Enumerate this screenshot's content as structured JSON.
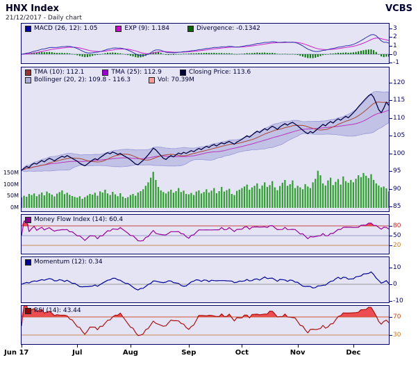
{
  "header": {
    "title": "HNX Index",
    "subtitle": "21/12/2017 - Daily chart",
    "brand": "VCBS"
  },
  "panels": {
    "macd": {
      "legend": [
        {
          "label": "MACD (26, 12): 1.05",
          "color": "#0000aa"
        },
        {
          "label": "EXP (9): 1.184",
          "color": "#cc00cc"
        },
        {
          "label": "Divergence: -0.1342",
          "color": "#006600"
        }
      ]
    },
    "price": {
      "legend": [
        {
          "label": "TMA (10): 112.1",
          "color": "#993333"
        },
        {
          "label": "TMA (25): 112.9",
          "color": "#9900cc"
        },
        {
          "label": "Closing Price: 113.6",
          "color": "#000033"
        },
        {
          "label": "Bollinger (20, 2): 109.8 - 116.3",
          "color": "#aaaadd"
        },
        {
          "label": "Vol: 70.39M",
          "color": "#ff9999"
        }
      ]
    },
    "mfi": {
      "legend": [
        {
          "label": "Money Flow Index (14): 60.4",
          "color": "#880088"
        }
      ]
    },
    "momentum": {
      "legend": [
        {
          "label": "Momentum (12): 0.34",
          "color": "#000099"
        }
      ]
    },
    "rsi": {
      "legend": [
        {
          "label": "RSI (14): 43.44",
          "color": "#990000"
        }
      ]
    }
  },
  "chart_data": {
    "type": "line",
    "title": "HNX Index",
    "subtitle": "21/12/2017 - Daily chart",
    "panels_order": [
      "MACD",
      "Price + Bollinger + Volume",
      "Money Flow Index",
      "Momentum",
      "RSI"
    ],
    "x_axis": {
      "label": "date",
      "months": [
        {
          "label": "Jun 17",
          "index": 0
        },
        {
          "label": "Jul",
          "index": 22
        },
        {
          "label": "Aug",
          "index": 43
        },
        {
          "label": "Sep",
          "index": 66
        },
        {
          "label": "Oct",
          "index": 87
        },
        {
          "label": "Nov",
          "index": 109
        },
        {
          "label": "Dec",
          "index": 131
        }
      ]
    },
    "series_last_values": {
      "macd": 1.05,
      "macd_signal": 1.184,
      "macd_divergence": -0.1342,
      "tma10": 112.1,
      "tma25": 112.9,
      "close": 113.6,
      "bollinger_lower": 109.8,
      "bollinger_upper": 116.3,
      "volume": "70.39M",
      "mfi14": 60.4,
      "momentum12": 0.34,
      "rsi14": 43.44
    },
    "close": [
      95.2,
      95.8,
      96.3,
      96.0,
      96.8,
      97.2,
      97.0,
      97.5,
      98.0,
      97.6,
      98.2,
      98.6,
      98.3,
      97.9,
      98.4,
      98.8,
      99.2,
      98.9,
      99.4,
      99.0,
      98.6,
      98.2,
      97.8,
      97.2,
      96.8,
      96.5,
      97.0,
      97.6,
      98.1,
      98.5,
      98.2,
      98.8,
      99.3,
      99.8,
      100.2,
      99.9,
      100.4,
      100.1,
      99.7,
      100.0,
      99.5,
      99.1,
      98.7,
      98.2,
      97.6,
      97.0,
      96.8,
      97.4,
      98.0,
      98.8,
      99.6,
      100.5,
      101.5,
      101.0,
      100.2,
      99.4,
      98.6,
      98.3,
      98.9,
      99.4,
      99.0,
      99.6,
      100.1,
      99.8,
      100.3,
      100.0,
      100.4,
      100.8,
      100.5,
      101.0,
      101.4,
      101.1,
      101.6,
      102.0,
      101.7,
      102.2,
      102.5,
      102.1,
      102.6,
      103.0,
      102.7,
      103.1,
      103.4,
      103.0,
      102.6,
      103.2,
      103.6,
      104.0,
      104.5,
      105.0,
      104.6,
      105.2,
      105.8,
      106.3,
      105.9,
      106.5,
      107.0,
      106.6,
      107.2,
      107.7,
      107.3,
      106.8,
      107.5,
      108.0,
      108.4,
      108.0,
      108.5,
      108.8,
      108.3,
      107.8,
      107.2,
      106.6,
      106.0,
      105.6,
      106.2,
      105.8,
      106.4,
      107.0,
      107.6,
      108.2,
      107.8,
      108.5,
      109.0,
      108.6,
      109.3,
      109.8,
      109.4,
      110.0,
      110.5,
      110.1,
      110.8,
      111.5,
      112.3,
      113.2,
      114.0,
      114.8,
      115.6,
      116.3,
      116.8,
      115.9,
      114.2,
      112.4,
      111.5,
      112.8,
      114.5,
      113.6
    ],
    "volume_m": [
      45,
      52,
      48,
      60,
      55,
      62,
      50,
      58,
      66,
      54,
      70,
      63,
      57,
      49,
      61,
      68,
      75,
      59,
      65,
      56,
      51,
      47,
      44,
      50,
      39,
      46,
      53,
      60,
      57,
      65,
      52,
      71,
      66,
      78,
      62,
      55,
      69,
      58,
      50,
      63,
      48,
      42,
      46,
      55,
      60,
      52,
      66,
      72,
      80,
      95,
      110,
      130,
      155,
      120,
      90,
      75,
      68,
      62,
      70,
      78,
      65,
      72,
      85,
      68,
      74,
      60,
      58,
      64,
      55,
      70,
      75,
      62,
      68,
      80,
      66,
      74,
      85,
      63,
      72,
      90,
      70,
      76,
      82,
      60,
      55,
      73,
      78,
      85,
      92,
      100,
      78,
      88,
      95,
      105,
      82,
      96,
      110,
      90,
      98,
      115,
      88,
      76,
      94,
      108,
      120,
      95,
      102,
      118,
      85,
      95,
      88,
      80,
      102,
      92,
      85,
      110,
      125,
      160,
      140,
      105,
      96,
      118,
      130,
      98,
      112,
      124,
      100,
      135,
      115,
      108,
      120,
      110,
      125,
      140,
      132,
      150,
      138,
      128,
      145,
      120,
      105,
      96,
      88,
      92,
      84,
      70.39
    ],
    "axes": {
      "macd": {
        "ticks": [
          {
            "text": "3",
            "v": 3
          },
          {
            "text": "2",
            "v": 2
          },
          {
            "text": "1",
            "v": 1
          },
          {
            "text": "0",
            "v": 0
          },
          {
            "text": "-1",
            "v": -1
          }
        ],
        "ref_lines": [
          {
            "v": 0,
            "color": "#9a9ac8"
          }
        ],
        "range": [
          -1.2,
          3.6
        ]
      },
      "price": {
        "ticks": [
          {
            "text": "120",
            "v": 120
          },
          {
            "text": "115",
            "v": 115
          },
          {
            "text": "110",
            "v": 110
          },
          {
            "text": "105",
            "v": 105
          },
          {
            "text": "100",
            "v": 100
          },
          {
            "text": "95",
            "v": 95
          },
          {
            "text": "90",
            "v": 90
          },
          {
            "text": "85",
            "v": 85
          }
        ],
        "range": [
          84,
          120
        ]
      },
      "volume": {
        "ticks": [
          {
            "text": "150M",
            "v": 150
          },
          {
            "text": "100M",
            "v": 100
          },
          {
            "text": "50M",
            "v": 50
          },
          {
            "text": "0M",
            "v": 0
          }
        ]
      },
      "mfi": {
        "ticks": [
          {
            "text": "80",
            "v": 80,
            "color": "#cc2222"
          },
          {
            "text": "50",
            "v": 50
          },
          {
            "text": "20",
            "v": 20,
            "color": "#cc7722"
          }
        ],
        "ref_lines": [
          {
            "v": 80,
            "color": "#cc4444"
          },
          {
            "v": 50,
            "color": "#9a9ac8"
          },
          {
            "v": 20,
            "color": "#cc8855"
          }
        ],
        "overbought": 80
      },
      "momentum": {
        "ticks": [
          {
            "text": "10",
            "v": 10
          },
          {
            "text": "0",
            "v": 0
          },
          {
            "text": "-10",
            "v": -10
          }
        ],
        "ref_lines": [
          {
            "v": 0,
            "color": "#999999"
          }
        ]
      },
      "rsi": {
        "ticks": [
          {
            "text": "70",
            "v": 70,
            "color": "#cc4411"
          },
          {
            "text": "30",
            "v": 30,
            "color": "#cc7722"
          }
        ],
        "ref_lines": [
          {
            "v": 70,
            "color": "#cc5533"
          },
          {
            "v": 30,
            "color": "#cc8855"
          }
        ],
        "overbought": 70
      }
    },
    "colors": {
      "close": "#000044",
      "tma10": "#aa4433",
      "tma25": "#bb33bb",
      "bollinger_fill": "#b9b9e2",
      "bollinger_edge": "#9898d8",
      "volume": "#2f9e2f",
      "macd": "#3333aa",
      "macd_signal": "#cc22cc",
      "macd_hist": "#007700",
      "mfi": "#990099",
      "momentum": "#000099",
      "rsi": "#aa1111",
      "overbought_fill": "#ee3333"
    }
  }
}
